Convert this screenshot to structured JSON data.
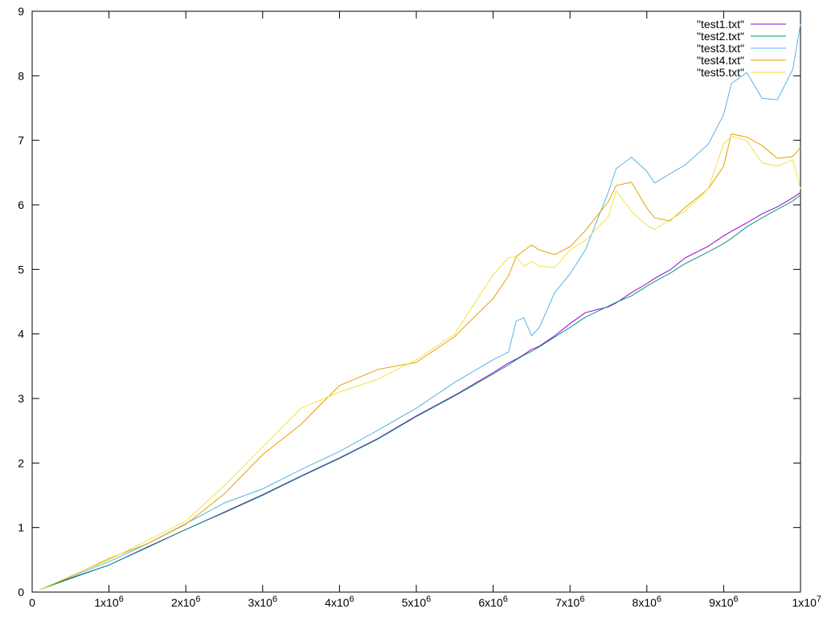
{
  "chart_data": {
    "type": "line",
    "title": "",
    "xlabel": "",
    "ylabel": "",
    "xlim": [
      0,
      10000000
    ],
    "ylim": [
      0,
      9
    ],
    "grid": false,
    "legend_position": "top-right",
    "x_ticks": [
      {
        "value": 0,
        "base": "0",
        "exp": ""
      },
      {
        "value": 1000000,
        "base": "1x10",
        "exp": "6"
      },
      {
        "value": 2000000,
        "base": "2x10",
        "exp": "6"
      },
      {
        "value": 3000000,
        "base": "3x10",
        "exp": "6"
      },
      {
        "value": 4000000,
        "base": "4x10",
        "exp": "6"
      },
      {
        "value": 5000000,
        "base": "5x10",
        "exp": "6"
      },
      {
        "value": 6000000,
        "base": "6x10",
        "exp": "6"
      },
      {
        "value": 7000000,
        "base": "7x10",
        "exp": "6"
      },
      {
        "value": 8000000,
        "base": "8x10",
        "exp": "6"
      },
      {
        "value": 9000000,
        "base": "9x10",
        "exp": "6"
      },
      {
        "value": 10000000,
        "base": "1x10",
        "exp": "7"
      }
    ],
    "y_ticks": [
      {
        "value": 0,
        "label": "0"
      },
      {
        "value": 1,
        "label": "1"
      },
      {
        "value": 2,
        "label": "2"
      },
      {
        "value": 3,
        "label": "3"
      },
      {
        "value": 4,
        "label": "4"
      },
      {
        "value": 5,
        "label": "5"
      },
      {
        "value": 6,
        "label": "6"
      },
      {
        "value": 7,
        "label": "7"
      },
      {
        "value": 8,
        "label": "8"
      },
      {
        "value": 9,
        "label": "9"
      }
    ],
    "x": [
      100000,
      500000,
      1000000,
      1500000,
      2000000,
      2500000,
      3000000,
      3500000,
      4000000,
      4500000,
      5000000,
      5500000,
      6000000,
      6200000,
      6300000,
      6400000,
      6500000,
      6600000,
      6800000,
      7000000,
      7200000,
      7500000,
      7600000,
      7800000,
      8000000,
      8100000,
      8300000,
      8500000,
      8800000,
      9000000,
      9100000,
      9300000,
      9500000,
      9700000,
      9900000,
      10000000
    ],
    "series": [
      {
        "name": "\"test1.txt\"",
        "color": "#9400d3",
        "values": [
          0.04,
          0.22,
          0.42,
          0.7,
          0.97,
          1.24,
          1.51,
          1.8,
          2.08,
          2.38,
          2.73,
          3.05,
          3.4,
          3.55,
          3.61,
          3.68,
          3.76,
          3.81,
          3.97,
          4.16,
          4.33,
          4.42,
          4.48,
          4.64,
          4.78,
          4.86,
          4.99,
          5.18,
          5.36,
          5.52,
          5.59,
          5.72,
          5.86,
          5.97,
          6.11,
          6.19
        ]
      },
      {
        "name": "\"test2.txt\"",
        "color": "#009e73",
        "values": [
          0.04,
          0.21,
          0.42,
          0.69,
          0.97,
          1.23,
          1.5,
          1.79,
          2.07,
          2.37,
          2.72,
          3.04,
          3.38,
          3.52,
          3.6,
          3.67,
          3.73,
          3.8,
          3.95,
          4.1,
          4.26,
          4.43,
          4.49,
          4.59,
          4.74,
          4.81,
          4.94,
          5.09,
          5.27,
          5.4,
          5.48,
          5.66,
          5.8,
          5.93,
          6.06,
          6.15
        ]
      },
      {
        "name": "\"test3.txt\"",
        "color": "#56b4e9",
        "values": [
          0.04,
          0.24,
          0.47,
          0.75,
          1.06,
          1.38,
          1.6,
          1.9,
          2.18,
          2.51,
          2.85,
          3.25,
          3.6,
          3.72,
          4.2,
          4.25,
          3.97,
          4.1,
          4.64,
          4.93,
          5.3,
          6.2,
          6.56,
          6.74,
          6.52,
          6.34,
          6.48,
          6.62,
          6.94,
          7.4,
          7.88,
          8.05,
          7.65,
          7.63,
          8.1,
          8.8
        ]
      },
      {
        "name": "\"test4.txt\"",
        "color": "#e69f00",
        "values": [
          0.04,
          0.24,
          0.52,
          0.75,
          1.05,
          1.52,
          2.13,
          2.6,
          3.2,
          3.45,
          3.56,
          3.96,
          4.55,
          4.9,
          5.2,
          5.29,
          5.38,
          5.3,
          5.23,
          5.35,
          5.6,
          6.05,
          6.3,
          6.35,
          5.95,
          5.8,
          5.75,
          5.96,
          6.25,
          6.6,
          7.1,
          7.05,
          6.92,
          6.72,
          6.75,
          6.89
        ]
      },
      {
        "name": "\"test5.txt\"",
        "color": "#f0e442",
        "values": [
          0.04,
          0.25,
          0.5,
          0.8,
          1.1,
          1.65,
          2.25,
          2.85,
          3.1,
          3.3,
          3.6,
          4.0,
          4.92,
          5.18,
          5.2,
          5.05,
          5.12,
          5.05,
          5.03,
          5.3,
          5.45,
          5.82,
          6.22,
          5.9,
          5.68,
          5.62,
          5.77,
          5.9,
          6.25,
          6.95,
          7.06,
          7.0,
          6.65,
          6.6,
          6.7,
          6.25
        ]
      }
    ]
  }
}
